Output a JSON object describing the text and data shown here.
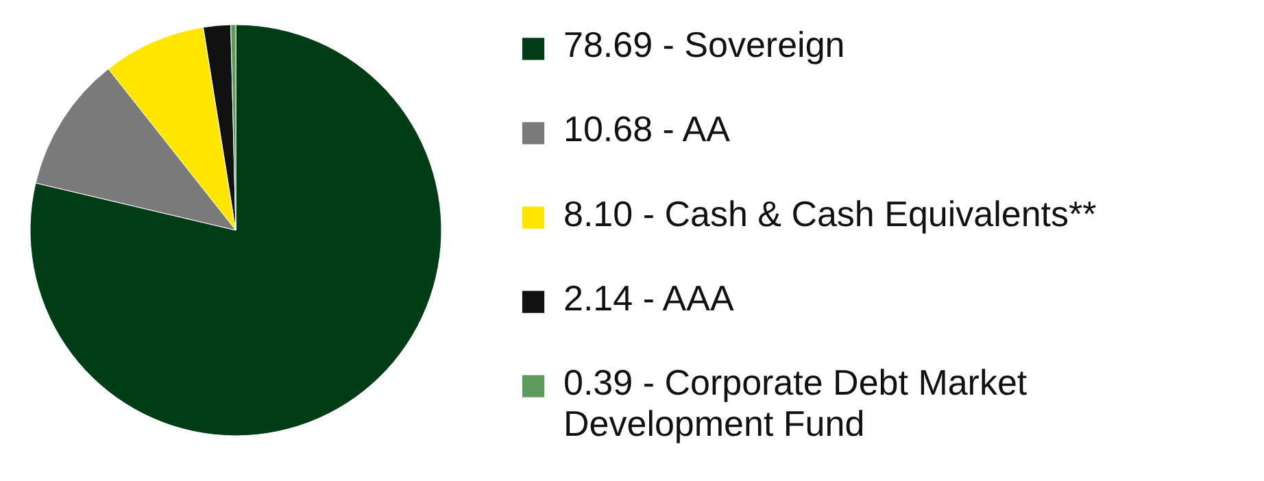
{
  "chart_data": {
    "type": "pie",
    "legend": "right",
    "categories": [
      "78.69 - Sovereign",
      "10.68 - AA",
      "8.10 - Cash & Cash Equivalents**",
      "2.14 - AAA",
      "0.39 - Corporate Debt Market\nDevelopment Fund"
    ],
    "values": [
      78.69,
      10.68,
      8.1,
      2.14,
      0.39
    ],
    "colors": [
      "#003d17",
      "#7a7a7a",
      "#ffe600",
      "#111111",
      "#5e9a5e"
    ]
  }
}
